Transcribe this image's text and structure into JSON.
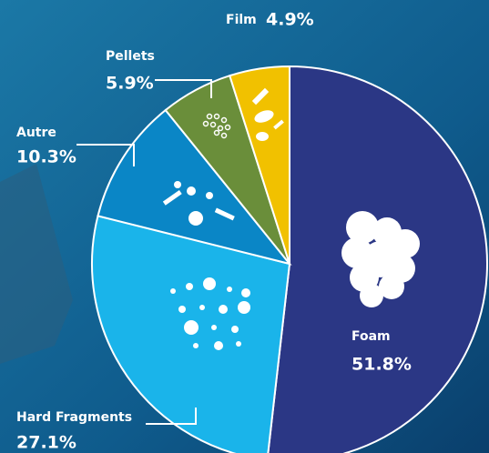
{
  "chart_data": {
    "type": "pie",
    "categories": [
      "Foam",
      "Hard Fragments",
      "Autre",
      "Pellets",
      "Film"
    ],
    "values": [
      51.8,
      27.1,
      10.3,
      5.9,
      4.9
    ],
    "value_labels": [
      "51.8%",
      "27.1%",
      "10.3%",
      "5.9%",
      "4.9%"
    ],
    "colors": [
      "#2b3785",
      "#1ab4ea",
      "#0a86c6",
      "#6a8e3a",
      "#f1c100"
    ]
  }
}
